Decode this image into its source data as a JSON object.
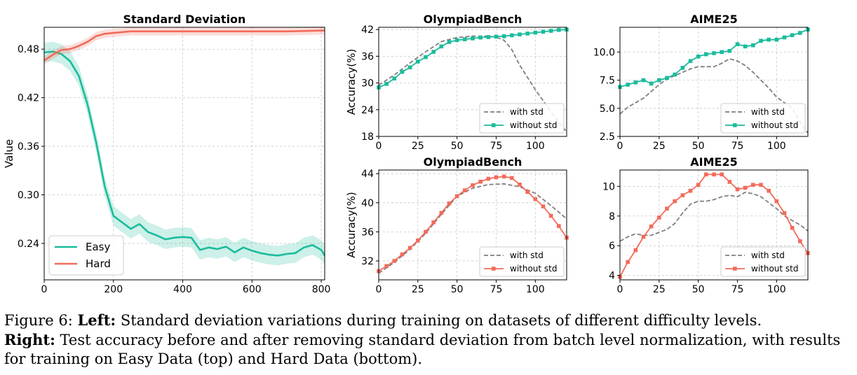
{
  "caption": {
    "figure_label": "Figure 6:",
    "left_label": "Left:",
    "left_text": "Standard deviation variations during training on datasets of different difficulty levels.",
    "right_label": "Right:",
    "right_text": "Test accuracy before and after removing standard deviation from batch level normalization, with results for training on Easy Data (top) and Hard Data (bottom)."
  },
  "colors": {
    "easy": "#1ABC9C",
    "hard": "#F26B5B",
    "with_std": "#7f7f7f"
  },
  "chart_data": [
    {
      "id": "std",
      "type": "line",
      "title": "Standard Deviation",
      "xlabel": "",
      "ylabel": "Value",
      "xlim": [
        0,
        810
      ],
      "ylim": [
        0.195,
        0.507
      ],
      "xticks": [
        0,
        200,
        400,
        600,
        800
      ],
      "yticks": [
        0.24,
        0.3,
        0.36,
        0.42,
        0.48
      ],
      "ytick_labels": [
        "0.24",
        "0.30",
        "0.36",
        "0.42",
        "0.48"
      ],
      "grid": true,
      "legend": "lower-left",
      "series": [
        {
          "name": "Easy",
          "color": "#1ABC9C",
          "x": [
            0,
            25,
            50,
            75,
            100,
            125,
            150,
            175,
            200,
            225,
            250,
            275,
            300,
            325,
            350,
            375,
            400,
            425,
            450,
            475,
            500,
            525,
            550,
            575,
            600,
            625,
            650,
            675,
            700,
            725,
            750,
            775,
            800,
            810
          ],
          "y": [
            0.476,
            0.477,
            0.474,
            0.465,
            0.447,
            0.412,
            0.365,
            0.31,
            0.274,
            0.266,
            0.258,
            0.264,
            0.254,
            0.25,
            0.245,
            0.247,
            0.248,
            0.247,
            0.232,
            0.235,
            0.233,
            0.236,
            0.229,
            0.235,
            0.231,
            0.228,
            0.226,
            0.225,
            0.227,
            0.228,
            0.235,
            0.238,
            0.232,
            0.225
          ],
          "band": 0.012
        },
        {
          "name": "Hard",
          "color": "#F26B5B",
          "x": [
            0,
            25,
            50,
            75,
            100,
            125,
            150,
            175,
            200,
            225,
            250,
            300,
            350,
            400,
            500,
            600,
            700,
            810
          ],
          "y": [
            0.466,
            0.473,
            0.479,
            0.48,
            0.484,
            0.489,
            0.496,
            0.499,
            0.5,
            0.501,
            0.502,
            0.502,
            0.502,
            0.502,
            0.502,
            0.502,
            0.502,
            0.503
          ],
          "band": 0.005
        }
      ]
    },
    {
      "id": "ob_easy",
      "type": "line",
      "title": "OlympiadBench",
      "xlabel": "",
      "ylabel": "Accuracy(%)",
      "xlim": [
        0,
        120
      ],
      "ylim": [
        18,
        42.5
      ],
      "xticks": [
        0,
        25,
        50,
        75,
        100
      ],
      "yticks": [
        18,
        24,
        30,
        36,
        42
      ],
      "ytick_labels": [
        "18",
        "24",
        "30",
        "36",
        "42"
      ],
      "grid": true,
      "legend": "lower-right",
      "series": [
        {
          "name": "with std",
          "color": "#7f7f7f",
          "dashed": true,
          "x": [
            0,
            10,
            20,
            30,
            40,
            50,
            60,
            70,
            75,
            80,
            85,
            90,
            100,
            110,
            120
          ],
          "y": [
            29.5,
            31.8,
            34.5,
            37,
            39.3,
            40.2,
            40.5,
            40.5,
            40.3,
            39.6,
            37.5,
            34,
            28.5,
            23.5,
            19
          ]
        },
        {
          "name": "without std",
          "color": "#1ABC9C",
          "markers": true,
          "x": [
            0,
            5,
            10,
            15,
            20,
            25,
            30,
            35,
            40,
            45,
            50,
            55,
            60,
            65,
            70,
            75,
            80,
            85,
            90,
            95,
            100,
            105,
            110,
            115,
            120
          ],
          "y": [
            29,
            29.8,
            31,
            32.5,
            33.5,
            34.8,
            35.8,
            37,
            38.2,
            39.2,
            39.6,
            39.8,
            40,
            40.2,
            40.3,
            40.4,
            40.5,
            40.7,
            40.9,
            41.1,
            41.3,
            41.5,
            41.7,
            41.9,
            42
          ]
        }
      ]
    },
    {
      "id": "aime_easy",
      "type": "line",
      "title": "AIME25",
      "xlabel": "",
      "ylabel": "",
      "xlim": [
        0,
        120
      ],
      "ylim": [
        2.5,
        12.2
      ],
      "xticks": [
        0,
        25,
        50,
        75,
        100
      ],
      "yticks": [
        2.5,
        5.0,
        7.5,
        10.0
      ],
      "ytick_labels": [
        "2.5",
        "5.0",
        "7.5",
        "10.0"
      ],
      "grid": true,
      "legend": "lower-right",
      "series": [
        {
          "name": "with std",
          "color": "#7f7f7f",
          "dashed": true,
          "x": [
            0,
            5,
            10,
            15,
            20,
            25,
            30,
            35,
            40,
            45,
            50,
            55,
            60,
            65,
            70,
            75,
            80,
            85,
            90,
            95,
            100,
            105,
            110,
            115,
            120
          ],
          "y": [
            4.5,
            5.1,
            5.5,
            5.9,
            6.5,
            7.1,
            7.6,
            7.9,
            8.2,
            8.5,
            8.7,
            8.7,
            8.7,
            9.0,
            9.4,
            9.2,
            8.8,
            8.2,
            7.5,
            6.8,
            6,
            5.5,
            5,
            3.8,
            2.8
          ]
        },
        {
          "name": "without std",
          "color": "#1ABC9C",
          "markers": true,
          "x": [
            0,
            5,
            10,
            15,
            20,
            25,
            30,
            35,
            40,
            45,
            50,
            55,
            60,
            65,
            70,
            75,
            80,
            85,
            90,
            95,
            100,
            105,
            110,
            115,
            120
          ],
          "y": [
            6.9,
            7.1,
            7.3,
            7.5,
            7.2,
            7.5,
            7.7,
            8.0,
            8.6,
            9.2,
            9.6,
            9.8,
            9.9,
            10.0,
            10.1,
            10.7,
            10.5,
            10.6,
            11.0,
            11.1,
            11.1,
            11.3,
            11.5,
            11.7,
            12.0
          ]
        }
      ]
    },
    {
      "id": "ob_hard",
      "type": "line",
      "title": "OlympiadBench",
      "xlabel": "",
      "ylabel": "Accuracy(%)",
      "xlim": [
        0,
        120
      ],
      "ylim": [
        29.4,
        44.5
      ],
      "xticks": [
        0,
        25,
        50,
        75,
        100
      ],
      "yticks": [
        32,
        36,
        40,
        44
      ],
      "ytick_labels": [
        "32",
        "36",
        "40",
        "44"
      ],
      "grid": true,
      "legend": "lower-right",
      "series": [
        {
          "name": "with std",
          "color": "#7f7f7f",
          "dashed": true,
          "x": [
            0,
            10,
            20,
            30,
            40,
            50,
            60,
            70,
            80,
            90,
            100,
            110,
            120
          ],
          "y": [
            30.3,
            31.8,
            33.6,
            35.8,
            38.4,
            40.9,
            42,
            42.5,
            42.6,
            42.2,
            41.3,
            39.6,
            37.8
          ]
        },
        {
          "name": "without std",
          "color": "#F26B5B",
          "markers": true,
          "x": [
            0,
            5,
            10,
            15,
            20,
            25,
            30,
            35,
            40,
            45,
            50,
            55,
            60,
            65,
            70,
            75,
            80,
            85,
            90,
            95,
            100,
            105,
            110,
            115,
            120
          ],
          "y": [
            30.6,
            31.3,
            32.0,
            32.9,
            33.8,
            34.8,
            36.0,
            37.3,
            38.6,
            39.9,
            40.9,
            41.7,
            42.4,
            42.9,
            43.3,
            43.5,
            43.6,
            43.4,
            42.5,
            41.5,
            40.5,
            39.5,
            38.2,
            36.8,
            35.2
          ]
        }
      ]
    },
    {
      "id": "aime_hard",
      "type": "line",
      "title": "AIME25",
      "xlabel": "",
      "ylabel": "",
      "xlim": [
        0,
        120
      ],
      "ylim": [
        3.7,
        11.1
      ],
      "xticks": [
        0,
        25,
        50,
        75,
        100
      ],
      "yticks": [
        4,
        6,
        8,
        10
      ],
      "ytick_labels": [
        "4",
        "6",
        "8",
        "10"
      ],
      "grid": true,
      "legend": "lower-right",
      "series": [
        {
          "name": "with std",
          "color": "#7f7f7f",
          "dashed": true,
          "x": [
            0,
            5,
            10,
            15,
            20,
            25,
            30,
            35,
            40,
            45,
            50,
            55,
            60,
            65,
            70,
            75,
            80,
            85,
            90,
            95,
            100,
            105,
            110,
            115,
            120
          ],
          "y": [
            6.3,
            6.6,
            6.8,
            6.7,
            6.7,
            6.9,
            7.1,
            7.5,
            8.2,
            8.8,
            9.0,
            9.0,
            9.1,
            9.3,
            9.4,
            9.3,
            9.6,
            9.5,
            9.3,
            8.9,
            8.5,
            8.0,
            7.7,
            7.4,
            7.0
          ]
        },
        {
          "name": "without std",
          "color": "#F26B5B",
          "markers": true,
          "x": [
            0,
            5,
            10,
            15,
            20,
            25,
            30,
            35,
            40,
            45,
            50,
            55,
            60,
            65,
            70,
            75,
            80,
            85,
            90,
            95,
            100,
            105,
            110,
            115,
            120
          ],
          "y": [
            3.9,
            4.9,
            5.7,
            6.6,
            7.3,
            7.9,
            8.5,
            9.0,
            9.4,
            9.7,
            10.1,
            10.8,
            10.8,
            10.8,
            10.3,
            9.8,
            9.9,
            10.1,
            10.1,
            9.7,
            9.0,
            8.2,
            7.2,
            6.3,
            5.5
          ]
        }
      ]
    }
  ]
}
